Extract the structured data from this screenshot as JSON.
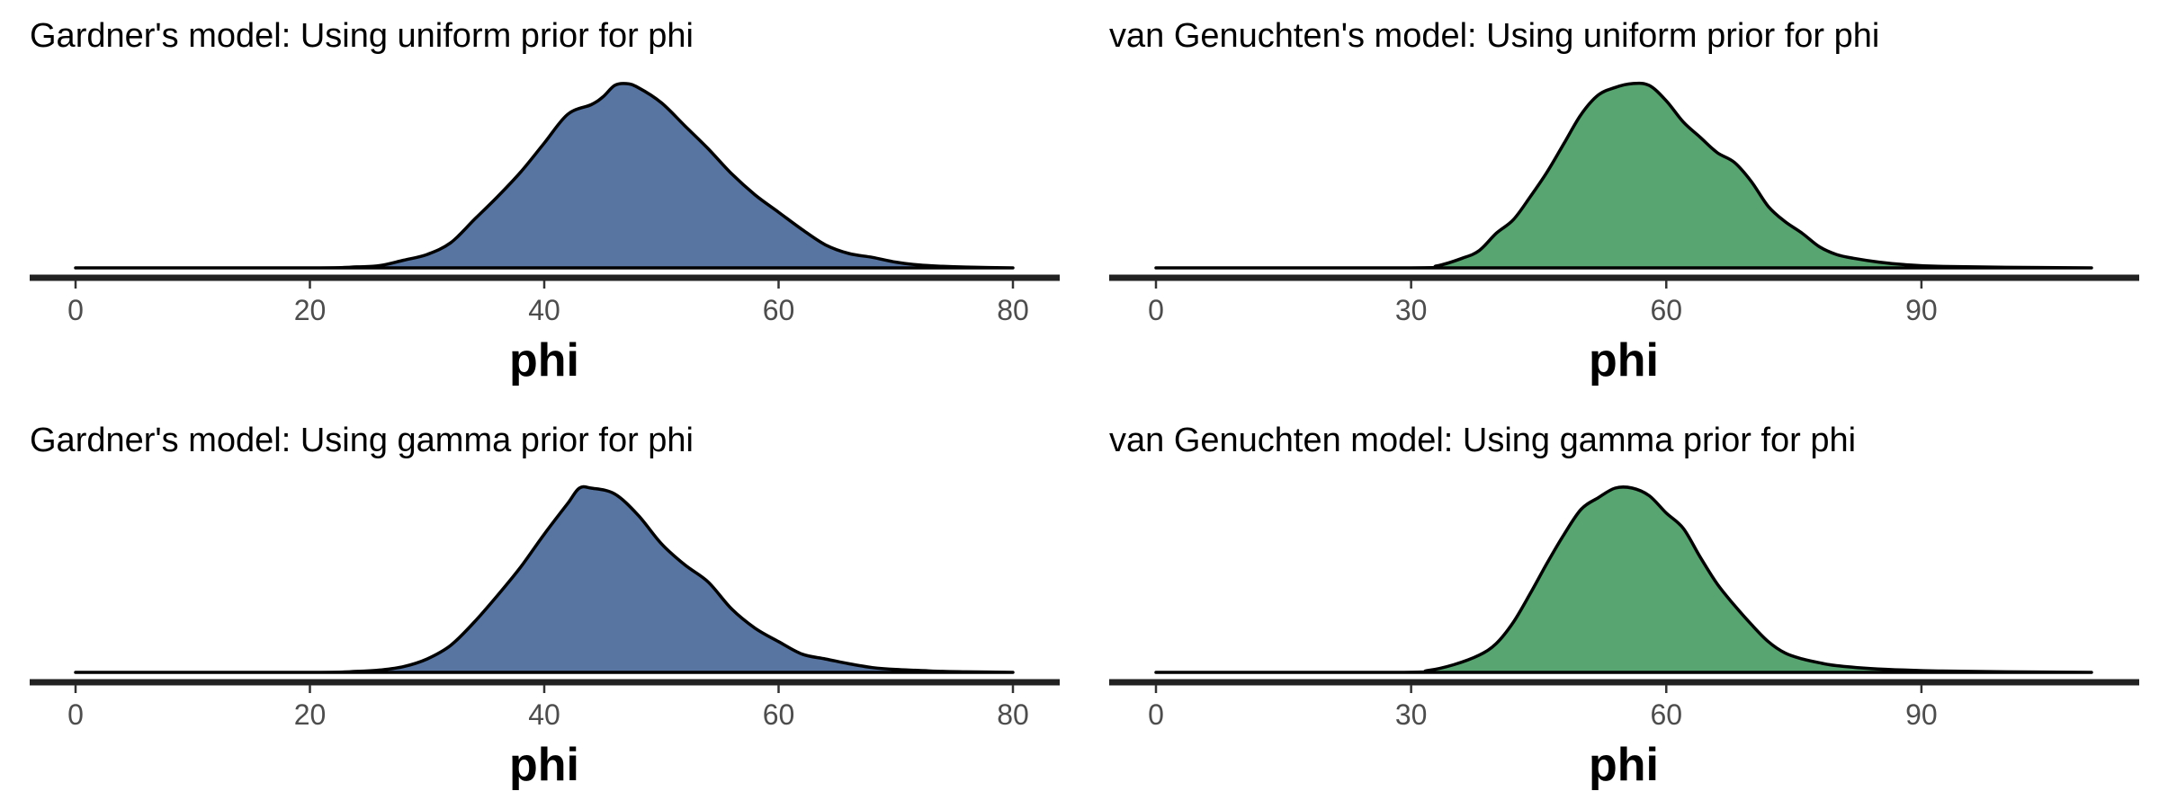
{
  "colors": {
    "gardner": "#5874a0",
    "van_genuchten": "#58a572"
  },
  "chart_data": [
    {
      "type": "area",
      "title": "Gardner's model: Using uniform prior for phi",
      "xlabel": "phi",
      "xlim": [
        0,
        80
      ],
      "xticks": [
        0,
        20,
        40,
        60,
        80
      ],
      "xtick_labels": [
        "0",
        "20",
        "40",
        "60",
        "80"
      ],
      "color_key": "gardner",
      "x": [
        0,
        20,
        24,
        26,
        28,
        30,
        32,
        34,
        36,
        38,
        40,
        42,
        44,
        45,
        46,
        47,
        48,
        50,
        52,
        54,
        56,
        58,
        60,
        62,
        64,
        66,
        68,
        70,
        72,
        74,
        76,
        80
      ],
      "density": [
        0,
        0,
        0.005,
        0.012,
        0.04,
        0.07,
        0.13,
        0.25,
        0.37,
        0.5,
        0.65,
        0.8,
        0.85,
        0.89,
        0.95,
        0.96,
        0.94,
        0.86,
        0.74,
        0.62,
        0.49,
        0.38,
        0.29,
        0.2,
        0.12,
        0.075,
        0.055,
        0.03,
        0.015,
        0.008,
        0.004,
        0
      ]
    },
    {
      "type": "area",
      "title": "van Genuchten's model: Using uniform prior for phi",
      "xlabel": "phi",
      "xlim": [
        0,
        110
      ],
      "xticks": [
        0,
        30,
        60,
        90
      ],
      "xtick_labels": [
        "0",
        "30",
        "60",
        "90"
      ],
      "color_key": "van_genuchten",
      "x": [
        0,
        30,
        33,
        36,
        38,
        40,
        42,
        44,
        46,
        48,
        50,
        52,
        54,
        56,
        58,
        60,
        62,
        64,
        66,
        68,
        70,
        72,
        74,
        76,
        78,
        80,
        82,
        85,
        88,
        92,
        100,
        110
      ],
      "density": [
        0,
        0,
        0.01,
        0.05,
        0.09,
        0.18,
        0.25,
        0.37,
        0.5,
        0.65,
        0.8,
        0.9,
        0.94,
        0.96,
        0.95,
        0.87,
        0.76,
        0.68,
        0.6,
        0.55,
        0.45,
        0.32,
        0.24,
        0.18,
        0.11,
        0.07,
        0.05,
        0.03,
        0.017,
        0.008,
        0.003,
        0
      ]
    },
    {
      "type": "area",
      "title": "Gardner's model: Using gamma prior for phi",
      "xlabel": "phi",
      "xlim": [
        0,
        80
      ],
      "xticks": [
        0,
        20,
        40,
        60,
        80
      ],
      "xtick_labels": [
        "0",
        "20",
        "40",
        "60",
        "80"
      ],
      "color_key": "gardner",
      "x": [
        0,
        20,
        24,
        26,
        28,
        30,
        32,
        34,
        36,
        38,
        40,
        42,
        43,
        44,
        46,
        48,
        50,
        52,
        54,
        56,
        58,
        60,
        62,
        64,
        66,
        68,
        70,
        72,
        74,
        76,
        80
      ],
      "density": [
        0,
        0,
        0.005,
        0.012,
        0.03,
        0.07,
        0.14,
        0.26,
        0.4,
        0.55,
        0.72,
        0.88,
        0.96,
        0.96,
        0.93,
        0.82,
        0.67,
        0.56,
        0.47,
        0.33,
        0.23,
        0.16,
        0.095,
        0.07,
        0.045,
        0.025,
        0.015,
        0.01,
        0.005,
        0.003,
        0
      ]
    },
    {
      "type": "area",
      "title": "van Genuchten model: Using gamma prior for phi",
      "xlabel": "phi",
      "xlim": [
        0,
        110
      ],
      "xticks": [
        0,
        30,
        60,
        90
      ],
      "xtick_labels": [
        "0",
        "30",
        "60",
        "90"
      ],
      "color_key": "van_genuchten",
      "x": [
        0,
        28,
        32,
        35,
        38,
        40,
        42,
        44,
        46,
        48,
        50,
        52,
        54,
        56,
        58,
        60,
        62,
        64,
        66,
        68,
        70,
        72,
        74,
        76,
        78,
        80,
        84,
        88,
        92,
        100,
        110
      ],
      "density": [
        0,
        0,
        0.01,
        0.04,
        0.09,
        0.15,
        0.26,
        0.41,
        0.57,
        0.72,
        0.85,
        0.91,
        0.96,
        0.96,
        0.92,
        0.83,
        0.75,
        0.6,
        0.46,
        0.35,
        0.25,
        0.16,
        0.1,
        0.07,
        0.05,
        0.035,
        0.02,
        0.012,
        0.007,
        0.003,
        0
      ]
    }
  ]
}
